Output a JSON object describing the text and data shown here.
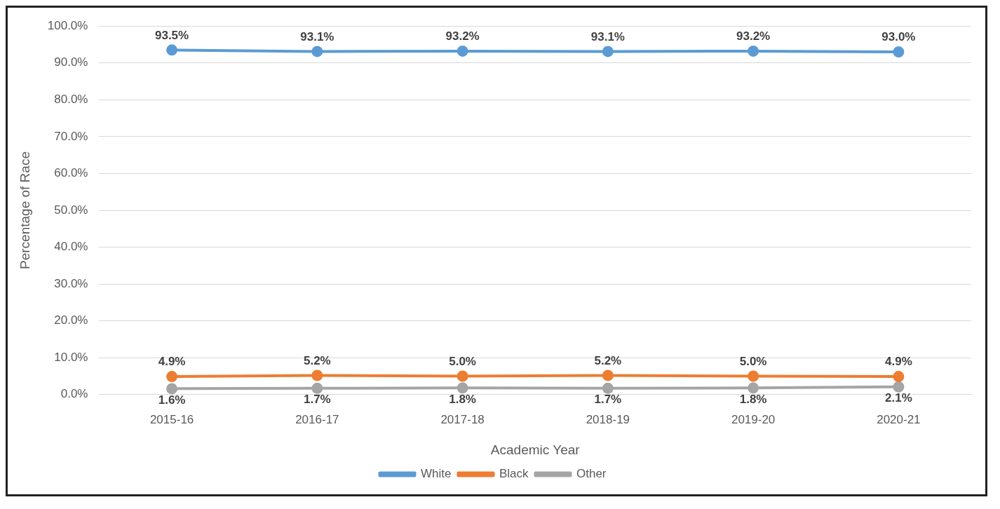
{
  "chart_data": {
    "type": "line",
    "xlabel": "Academic Year",
    "ylabel": "Percentage of Race",
    "categories": [
      "2015-16",
      "2016-17",
      "2017-18",
      "2018-19",
      "2019-20",
      "2020-21"
    ],
    "series": [
      {
        "name": "White",
        "color": "#5b9bd5",
        "values": [
          93.5,
          93.1,
          93.2,
          93.1,
          93.2,
          93.0
        ],
        "value_labels": [
          "93.5%",
          "93.1%",
          "93.2%",
          "93.1%",
          "93.2%",
          "93.0%"
        ]
      },
      {
        "name": "Black",
        "color": "#ed7d31",
        "values": [
          4.9,
          5.2,
          5.0,
          5.2,
          5.0,
          4.9
        ],
        "value_labels": [
          "4.9%",
          "5.2%",
          "5.0%",
          "5.2%",
          "5.0%",
          "4.9%"
        ]
      },
      {
        "name": "Other",
        "color": "#a5a5a5",
        "values": [
          1.6,
          1.7,
          1.8,
          1.7,
          1.8,
          2.1
        ],
        "value_labels": [
          "1.6%",
          "1.7%",
          "1.8%",
          "1.7%",
          "1.8%",
          "2.1%"
        ]
      }
    ],
    "ylim": [
      0,
      100
    ],
    "yticks": [
      {
        "value": 0,
        "label": "0.0%"
      },
      {
        "value": 10,
        "label": "10.0%"
      },
      {
        "value": 20,
        "label": "20.0%"
      },
      {
        "value": 30,
        "label": "30.0%"
      },
      {
        "value": 40,
        "label": "40.0%"
      },
      {
        "value": 50,
        "label": "50.0%"
      },
      {
        "value": 60,
        "label": "60.0%"
      },
      {
        "value": 70,
        "label": "70.0%"
      },
      {
        "value": 80,
        "label": "80.0%"
      },
      {
        "value": 90,
        "label": "90.0%"
      },
      {
        "value": 100,
        "label": "100.0%"
      }
    ],
    "grid": "y",
    "legend": "bottom",
    "marker": "circle",
    "line_style": "solid"
  }
}
